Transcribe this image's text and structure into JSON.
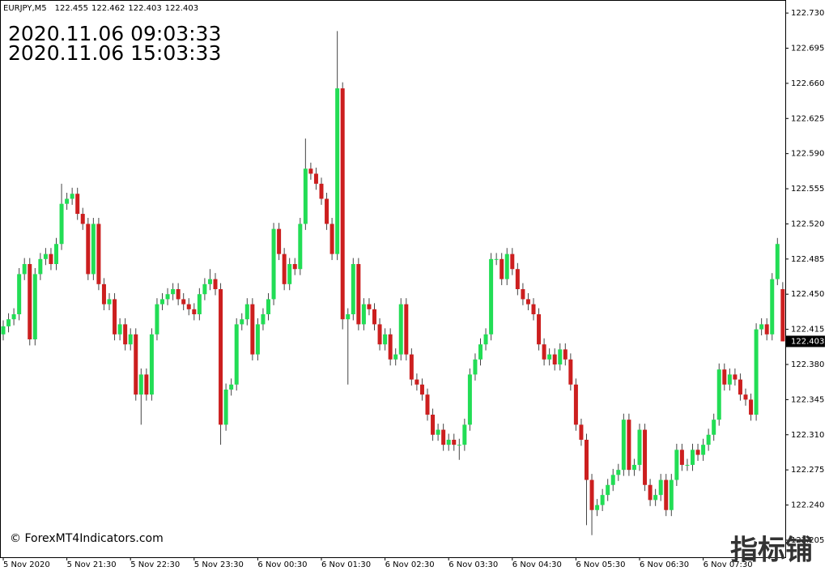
{
  "chart_data": {
    "type": "candlestick",
    "title": "EURJPY,M5",
    "header_prices": [
      122.455,
      122.462,
      122.403,
      122.403
    ],
    "time_local": "2020.11.06 09:03:33",
    "time_server": "2020.11.06 15:03:33",
    "copyright": "© ForexMT4Indicators.com",
    "watermark": "指标铺",
    "up_color": "#22dd55",
    "down_color": "#cc1f1f",
    "wick_color": "#444444",
    "local_color": "#ff0000",
    "server_color": "#00ee00",
    "current_price": 122.403,
    "ylim": [
      122.188,
      122.743
    ],
    "yticks": [
      {
        "value": 122.73,
        "label": "122.730"
      },
      122.695,
      {
        "value": 122.66,
        "label": "122.660"
      },
      122.625,
      {
        "value": 122.59,
        "label": "122.590"
      },
      122.555,
      {
        "value": 122.52,
        "label": "122.520"
      },
      122.485,
      {
        "value": 122.45,
        "label": "122.450"
      },
      122.415,
      {
        "value": 122.38,
        "label": "122.380"
      },
      122.345,
      {
        "value": 122.31,
        "label": "122.310"
      },
      122.275,
      {
        "value": 122.24,
        "label": "122.240"
      },
      122.205
    ],
    "categories": [
      "5 Nov 2020",
      null,
      null,
      null,
      null,
      null,
      null,
      null,
      null,
      null,
      null,
      null,
      "5 Nov 21:30",
      null,
      null,
      null,
      null,
      null,
      null,
      null,
      null,
      null,
      null,
      null,
      "5 Nov 22:30",
      null,
      null,
      null,
      null,
      null,
      null,
      null,
      null,
      null,
      null,
      null,
      "5 Nov 23:30",
      null,
      null,
      null,
      null,
      null,
      null,
      null,
      null,
      null,
      null,
      null,
      "6 Nov 00:30",
      null,
      null,
      null,
      null,
      null,
      null,
      null,
      null,
      null,
      null,
      null,
      "6 Nov 01:30",
      null,
      null,
      null,
      null,
      null,
      null,
      null,
      null,
      null,
      null,
      null,
      "6 Nov 02:30",
      null,
      null,
      null,
      null,
      null,
      null,
      null,
      null,
      null,
      null,
      null,
      "6 Nov 03:30",
      null,
      null,
      null,
      null,
      null,
      null,
      null,
      null,
      null,
      null,
      null,
      "6 Nov 04:30",
      null,
      null,
      null,
      null,
      null,
      null,
      null,
      null,
      null,
      null,
      null,
      "6 Nov 05:30",
      null,
      null,
      null,
      null,
      null,
      null,
      null,
      null,
      null,
      null,
      null,
      "6 Nov 06:30",
      null,
      null,
      null,
      null,
      null,
      null,
      null,
      null,
      null,
      null,
      null,
      "6 Nov 07:30",
      null,
      null,
      null,
      null,
      null,
      null,
      null,
      null,
      null,
      null,
      null,
      null,
      null,
      null,
      null
    ],
    "open": [
      122.41,
      122.418,
      122.425,
      122.43,
      122.47,
      122.48,
      122.405,
      122.47,
      122.485,
      122.49,
      122.48,
      122.5,
      122.54,
      122.545,
      122.55,
      122.53,
      122.52,
      122.47,
      122.52,
      122.46,
      122.44,
      122.445,
      122.41,
      122.42,
      122.4,
      122.41,
      122.35,
      122.37,
      122.35,
      122.41,
      122.44,
      122.445,
      122.45,
      122.455,
      122.445,
      122.44,
      122.435,
      122.43,
      122.45,
      122.46,
      122.465,
      122.455,
      122.32,
      122.355,
      122.36,
      122.42,
      122.425,
      122.44,
      122.39,
      122.42,
      122.43,
      122.445,
      122.515,
      122.49,
      122.46,
      122.48,
      122.475,
      122.52,
      122.575,
      122.57,
      122.56,
      122.545,
      122.52,
      122.49,
      122.655,
      122.425,
      122.43,
      122.48,
      122.42,
      122.44,
      122.435,
      122.42,
      122.4,
      122.41,
      122.385,
      122.39,
      122.44,
      122.39,
      122.365,
      122.36,
      122.35,
      122.33,
      122.31,
      122.315,
      122.3,
      122.305,
      122.3,
      122.3,
      122.32,
      122.37,
      122.385,
      122.4,
      122.41,
      122.485,
      122.485,
      122.465,
      122.49,
      122.475,
      122.455,
      122.445,
      122.44,
      122.43,
      122.4,
      122.385,
      122.39,
      122.38,
      122.395,
      122.385,
      122.36,
      122.32,
      122.305,
      122.265,
      122.235,
      122.24,
      122.25,
      122.26,
      122.27,
      122.275,
      122.325,
      122.275,
      122.28,
      122.315,
      122.26,
      122.245,
      122.25,
      122.265,
      122.235,
      122.265,
      122.295,
      122.28,
      122.28,
      122.295,
      122.29,
      122.3,
      122.31,
      122.325,
      122.375,
      122.36,
      122.37,
      122.365,
      122.35,
      122.345,
      122.33,
      122.415,
      122.42,
      122.41,
      122.465,
      122.455
    ],
    "high": [
      122.424,
      122.431,
      122.436,
      122.476,
      122.486,
      122.486,
      122.476,
      122.491,
      122.496,
      122.496,
      122.506,
      122.56,
      122.551,
      122.556,
      122.556,
      122.536,
      122.526,
      122.526,
      122.526,
      122.466,
      122.451,
      122.451,
      122.426,
      122.426,
      122.416,
      122.416,
      122.376,
      122.376,
      122.416,
      122.446,
      122.451,
      122.456,
      122.461,
      122.461,
      122.451,
      122.446,
      122.441,
      122.456,
      122.466,
      122.475,
      122.471,
      122.461,
      122.361,
      122.366,
      122.426,
      122.431,
      122.446,
      122.446,
      122.426,
      122.436,
      122.451,
      122.521,
      122.521,
      122.496,
      122.486,
      122.486,
      122.526,
      122.605,
      122.581,
      122.576,
      122.566,
      122.551,
      122.526,
      122.712,
      122.661,
      122.436,
      122.486,
      122.486,
      122.446,
      122.446,
      122.441,
      122.426,
      122.416,
      122.416,
      122.396,
      122.446,
      122.446,
      122.396,
      122.371,
      122.366,
      122.356,
      122.336,
      122.321,
      122.321,
      122.311,
      122.311,
      122.306,
      122.326,
      122.376,
      122.391,
      122.406,
      122.416,
      122.491,
      122.491,
      122.491,
      122.496,
      122.496,
      122.481,
      122.461,
      122.451,
      122.446,
      122.436,
      122.406,
      122.396,
      122.396,
      122.401,
      122.401,
      122.391,
      122.366,
      122.326,
      122.311,
      122.271,
      122.246,
      122.256,
      122.266,
      122.276,
      122.281,
      122.331,
      122.331,
      122.286,
      122.321,
      122.321,
      122.266,
      122.256,
      122.271,
      122.271,
      122.271,
      122.301,
      122.301,
      122.286,
      122.301,
      122.301,
      122.306,
      122.316,
      122.331,
      122.381,
      122.381,
      122.376,
      122.376,
      122.371,
      122.356,
      122.351,
      122.421,
      122.426,
      122.426,
      122.471,
      122.506,
      122.462
    ],
    "low": [
      122.404,
      122.412,
      122.419,
      122.424,
      122.464,
      122.399,
      122.399,
      122.464,
      122.479,
      122.474,
      122.474,
      122.494,
      122.534,
      122.539,
      122.524,
      122.514,
      122.464,
      122.464,
      122.454,
      122.434,
      122.434,
      122.404,
      122.404,
      122.394,
      122.394,
      122.344,
      122.32,
      122.344,
      122.344,
      122.404,
      122.434,
      122.439,
      122.444,
      122.439,
      122.434,
      122.429,
      122.424,
      122.424,
      122.444,
      122.454,
      122.449,
      122.3,
      122.314,
      122.349,
      122.354,
      122.414,
      122.419,
      122.384,
      122.384,
      122.414,
      122.424,
      122.439,
      122.484,
      122.454,
      122.454,
      122.469,
      122.469,
      122.514,
      122.564,
      122.554,
      122.539,
      122.514,
      122.484,
      122.484,
      122.415,
      122.36,
      122.424,
      122.414,
      122.414,
      122.429,
      122.414,
      122.394,
      122.394,
      122.379,
      122.379,
      122.384,
      122.384,
      122.359,
      122.354,
      122.344,
      122.324,
      122.304,
      122.304,
      122.294,
      122.294,
      122.294,
      122.285,
      122.294,
      122.314,
      122.364,
      122.379,
      122.394,
      122.404,
      122.479,
      122.459,
      122.459,
      122.469,
      122.449,
      122.439,
      122.434,
      122.424,
      122.394,
      122.379,
      122.379,
      122.374,
      122.374,
      122.379,
      122.354,
      122.314,
      122.299,
      122.22,
      122.21,
      122.229,
      122.234,
      122.244,
      122.254,
      122.264,
      122.269,
      122.269,
      122.269,
      122.274,
      122.254,
      122.239,
      122.239,
      122.244,
      122.229,
      122.229,
      122.259,
      122.274,
      122.274,
      122.274,
      122.284,
      122.284,
      122.294,
      122.304,
      122.319,
      122.354,
      122.354,
      122.359,
      122.344,
      122.339,
      122.324,
      122.324,
      122.409,
      122.404,
      122.404,
      122.459,
      122.403
    ],
    "close": [
      122.418,
      122.425,
      122.43,
      122.47,
      122.48,
      122.405,
      122.47,
      122.485,
      122.49,
      122.48,
      122.5,
      122.54,
      122.545,
      122.55,
      122.53,
      122.52,
      122.47,
      122.52,
      122.46,
      122.44,
      122.445,
      122.41,
      122.42,
      122.4,
      122.41,
      122.35,
      122.37,
      122.35,
      122.41,
      122.44,
      122.445,
      122.45,
      122.455,
      122.445,
      122.44,
      122.435,
      122.43,
      122.45,
      122.46,
      122.465,
      122.455,
      122.32,
      122.355,
      122.36,
      122.42,
      122.425,
      122.44,
      122.39,
      122.42,
      122.43,
      122.445,
      122.515,
      122.49,
      122.46,
      122.48,
      122.475,
      122.52,
      122.575,
      122.57,
      122.56,
      122.545,
      122.52,
      122.49,
      122.655,
      122.425,
      122.43,
      122.48,
      122.42,
      122.44,
      122.435,
      122.42,
      122.4,
      122.41,
      122.385,
      122.39,
      122.44,
      122.39,
      122.365,
      122.36,
      122.35,
      122.33,
      122.31,
      122.315,
      122.3,
      122.305,
      122.3,
      122.3,
      122.32,
      122.37,
      122.385,
      122.4,
      122.41,
      122.485,
      122.485,
      122.465,
      122.49,
      122.475,
      122.455,
      122.445,
      122.44,
      122.43,
      122.4,
      122.385,
      122.39,
      122.38,
      122.395,
      122.385,
      122.36,
      122.32,
      122.305,
      122.265,
      122.235,
      122.24,
      122.25,
      122.26,
      122.27,
      122.275,
      122.325,
      122.275,
      122.28,
      122.315,
      122.26,
      122.245,
      122.25,
      122.265,
      122.235,
      122.265,
      122.295,
      122.28,
      122.28,
      122.295,
      122.29,
      122.3,
      122.31,
      122.325,
      122.375,
      122.36,
      122.37,
      122.365,
      122.35,
      122.345,
      122.33,
      122.415,
      122.42,
      122.41,
      122.465,
      122.5,
      122.403
    ]
  }
}
